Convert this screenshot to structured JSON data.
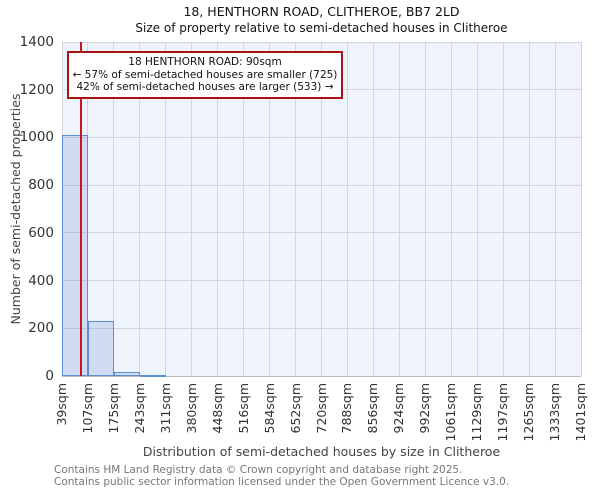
{
  "title": "18, HENTHORN ROAD, CLITHEROE, BB7 2LD",
  "subtitle": "Size of property relative to semi-detached houses in Clitheroe",
  "annotation": {
    "line1": "18 HENTHORN ROAD: 90sqm",
    "line2": "← 57% of semi-detached houses are smaller (725)",
    "line3": "42% of semi-detached houses are larger (533) →"
  },
  "chart_data": {
    "type": "bar",
    "title": "18, HENTHORN ROAD, CLITHEROE, BB7 2LD",
    "subtitle": "Size of property relative to semi-detached houses in Clitheroe",
    "xlabel": "Distribution of semi-detached houses by size in Clitheroe",
    "ylabel": "Number of semi-detached properties",
    "x_tick_labels": [
      "39sqm",
      "107sqm",
      "175sqm",
      "243sqm",
      "311sqm",
      "380sqm",
      "448sqm",
      "516sqm",
      "584sqm",
      "652sqm",
      "720sqm",
      "788sqm",
      "856sqm",
      "924sqm",
      "992sqm",
      "1061sqm",
      "1129sqm",
      "1197sqm",
      "1265sqm",
      "1333sqm",
      "1401sqm"
    ],
    "bin_edges_sqm": [
      39,
      107,
      175,
      243,
      311,
      380,
      448,
      516,
      584,
      652,
      720,
      788,
      856,
      924,
      992,
      1061,
      1129,
      1197,
      1265,
      1333,
      1401
    ],
    "values": [
      1010,
      230,
      15,
      4,
      0,
      0,
      0,
      0,
      0,
      0,
      0,
      0,
      0,
      0,
      0,
      0,
      0,
      0,
      0,
      0
    ],
    "y_ticks": [
      0,
      200,
      400,
      600,
      800,
      1000,
      1200,
      1400
    ],
    "ylim": [
      0,
      1400
    ],
    "grid": true,
    "legend": "none",
    "marker_value_sqm": 90,
    "smaller_count": 725,
    "larger_count": 533,
    "smaller_pct": 57,
    "larger_pct": 42
  },
  "footer": {
    "line1": "Contains HM Land Registry data © Crown copyright and database right 2025.",
    "line2": "Contains public sector information licensed under the Open Government Licence v3.0."
  },
  "colors": {
    "bar_fill": "rgba(110,150,210,0.25)",
    "bar_edge": "#5b8fd0",
    "marker_line": "#cc1520",
    "annotation_border": "#aa1111",
    "plot_bg": "#eff3fb",
    "gridline": "#d2d5dd",
    "footer_text": "#777777"
  }
}
